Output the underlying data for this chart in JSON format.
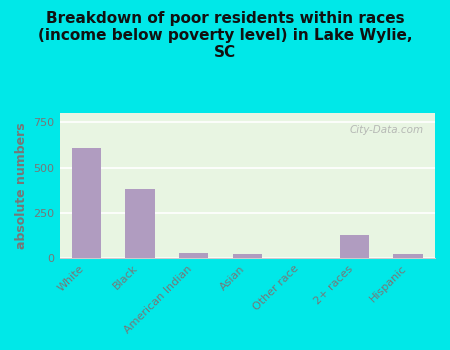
{
  "title": "Breakdown of poor residents within races\n(income below poverty level) in Lake Wylie,\nSC",
  "categories": [
    "White",
    "Black",
    "American Indian",
    "Asian",
    "Other race",
    "2+ races",
    "Hispanic"
  ],
  "values": [
    610,
    380,
    30,
    25,
    5,
    130,
    22
  ],
  "bar_color": "#b09cc0",
  "ylabel": "absolute numbers",
  "ylim": [
    0,
    800
  ],
  "yticks": [
    0,
    250,
    500,
    750
  ],
  "background_outer": "#00e8e8",
  "background_inner": "#e8f5e2",
  "grid_color": "#ffffff",
  "watermark": "City-Data.com",
  "ylabel_color": "#777777",
  "tick_color": "#777777",
  "title_fontsize": 11,
  "ylabel_fontsize": 9,
  "xtick_fontsize": 8,
  "ytick_fontsize": 8
}
